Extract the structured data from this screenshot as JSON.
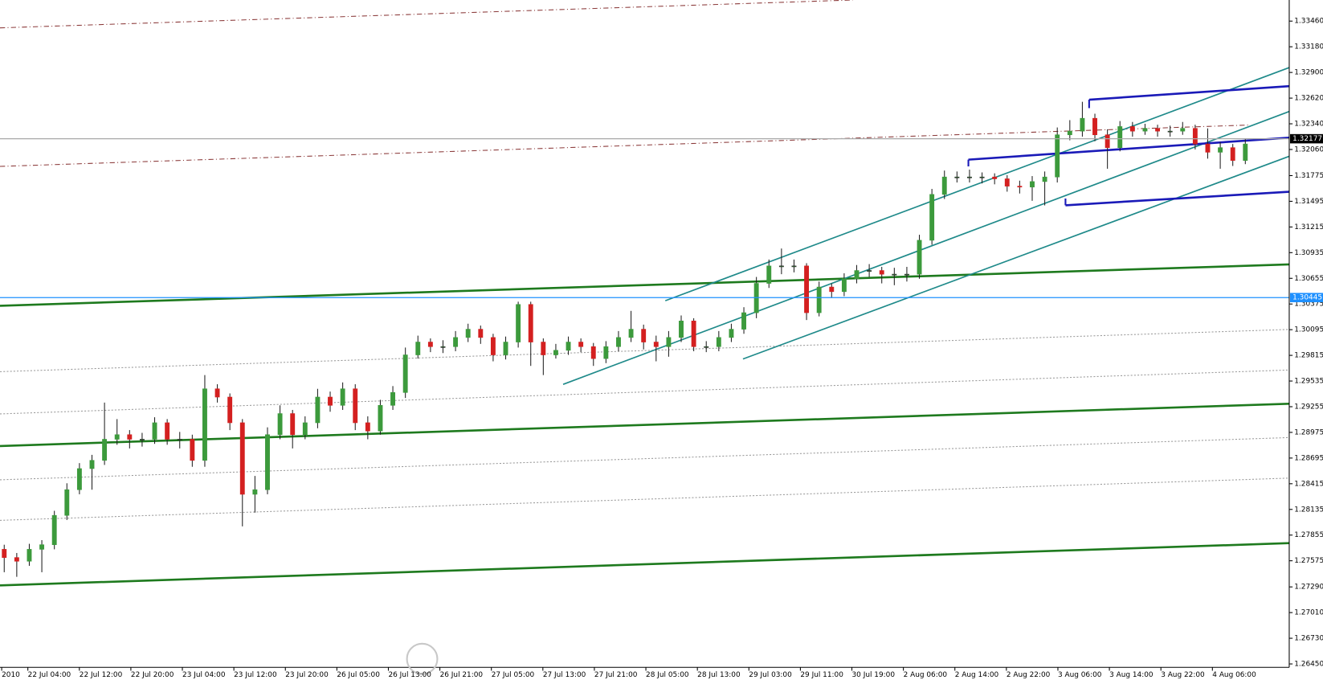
{
  "chart_data": {
    "type": "candlestick",
    "open": [
      1.277,
      1.2761,
      1.2757,
      1.277,
      1.2775,
      1.2807,
      1.2835,
      1.2858,
      1.2867,
      1.289,
      1.2895,
      1.289,
      1.289,
      1.2908,
      1.289,
      1.289,
      1.2867,
      1.2945,
      1.2936,
      1.2908,
      1.283,
      1.2835,
      1.2895,
      1.2918,
      1.2895,
      1.2908,
      1.2936,
      1.2927,
      1.2945,
      1.2908,
      1.2899,
      1.2927,
      1.2941,
      1.2982,
      1.2996,
      1.2991,
      1.2991,
      1.3001,
      1.301,
      1.3001,
      1.2982,
      1.2996,
      1.3037,
      1.2996,
      1.2982,
      1.2987,
      1.2996,
      1.2991,
      1.2978,
      1.2991,
      1.3001,
      1.301,
      1.2996,
      1.2991,
      1.3001,
      1.3019,
      1.2991,
      1.2991,
      1.3001,
      1.301,
      1.3028,
      1.306,
      1.3079,
      1.3079,
      1.3079,
      1.3028,
      1.3056,
      1.3051,
      1.3065,
      1.3074,
      1.3074,
      1.307,
      1.307,
      1.307,
      1.3107,
      1.3157,
      1.3176,
      1.3176,
      1.3176,
      1.3176,
      1.3174,
      1.3166,
      1.3165,
      1.3171,
      1.3176,
      1.3222,
      1.3226,
      1.324,
      1.3222,
      1.3208,
      1.3231,
      1.3226,
      1.3229,
      1.3226,
      1.3226,
      1.3229,
      1.3212,
      1.3203,
      1.3208,
      1.3194
    ],
    "high": [
      1.2775,
      1.2766,
      1.2776,
      1.278,
      1.2812,
      1.2842,
      1.2864,
      1.2873,
      1.293,
      1.2912,
      1.29,
      1.2897,
      1.2914,
      1.2912,
      1.2898,
      1.2895,
      1.296,
      1.295,
      1.294,
      1.2912,
      1.285,
      1.2903,
      1.2927,
      1.2922,
      1.2915,
      1.2945,
      1.2942,
      1.2952,
      1.295,
      1.2915,
      1.2933,
      1.2948,
      1.299,
      1.3003,
      1.3,
      1.2998,
      1.3008,
      1.3016,
      1.3014,
      1.3005,
      1.3002,
      1.304,
      1.304,
      1.3,
      1.2994,
      1.3002,
      1.3,
      1.2995,
      1.2997,
      1.3008,
      1.303,
      1.3015,
      1.3003,
      1.3008,
      1.3025,
      1.3022,
      1.2997,
      1.3008,
      1.3016,
      1.3034,
      1.3067,
      1.3086,
      1.3098,
      1.3086,
      1.3082,
      1.3062,
      1.306,
      1.3071,
      1.308,
      1.3081,
      1.3078,
      1.3077,
      1.3078,
      1.3113,
      1.3163,
      1.3183,
      1.3182,
      1.3184,
      1.3181,
      1.318,
      1.3178,
      1.3172,
      1.3177,
      1.3182,
      1.323,
      1.3238,
      1.3258,
      1.3245,
      1.3228,
      1.3237,
      1.3236,
      1.3234,
      1.3233,
      1.3232,
      1.3236,
      1.3233,
      1.3229,
      1.3214,
      1.3212,
      1.3218
    ],
    "low": [
      1.2745,
      1.274,
      1.2752,
      1.2745,
      1.277,
      1.2802,
      1.283,
      1.2835,
      1.2862,
      1.2884,
      1.288,
      1.2882,
      1.2885,
      1.2884,
      1.288,
      1.286,
      1.286,
      1.293,
      1.29,
      1.2795,
      1.281,
      1.283,
      1.289,
      1.288,
      1.289,
      1.2902,
      1.292,
      1.2922,
      1.29,
      1.289,
      1.2895,
      1.2922,
      1.2935,
      1.2978,
      1.2985,
      1.2984,
      1.2986,
      1.2996,
      1.2994,
      1.2975,
      1.2977,
      1.299,
      1.297,
      1.296,
      1.2978,
      1.2982,
      1.2985,
      1.297,
      1.2973,
      1.2986,
      1.2996,
      1.2988,
      1.2975,
      1.298,
      1.2996,
      1.2986,
      1.2985,
      1.2986,
      1.2996,
      1.3005,
      1.3022,
      1.3055,
      1.307,
      1.3072,
      1.302,
      1.3024,
      1.3044,
      1.3046,
      1.306,
      1.3067,
      1.306,
      1.3058,
      1.3062,
      1.3065,
      1.3102,
      1.3152,
      1.317,
      1.317,
      1.3169,
      1.3168,
      1.316,
      1.3158,
      1.315,
      1.3145,
      1.317,
      1.3216,
      1.322,
      1.3215,
      1.3185,
      1.3204,
      1.322,
      1.3222,
      1.322,
      1.322,
      1.3222,
      1.3206,
      1.3196,
      1.3185,
      1.3188,
      1.319
    ],
    "close": [
      1.2761,
      1.2757,
      1.277,
      1.2775,
      1.2807,
      1.2835,
      1.2858,
      1.2867,
      1.289,
      1.2895,
      1.289,
      1.289,
      1.2908,
      1.289,
      1.289,
      1.2867,
      1.2945,
      1.2936,
      1.2908,
      1.283,
      1.2835,
      1.2895,
      1.2918,
      1.2895,
      1.2908,
      1.2936,
      1.2927,
      1.2945,
      1.2908,
      1.2899,
      1.2927,
      1.2941,
      1.2982,
      1.2996,
      1.2991,
      1.2991,
      1.3001,
      1.301,
      1.3001,
      1.2982,
      1.2996,
      1.3037,
      1.2996,
      1.2982,
      1.2987,
      1.2996,
      1.2991,
      1.2978,
      1.2991,
      1.3001,
      1.301,
      1.2996,
      1.2991,
      1.3001,
      1.3019,
      1.2991,
      1.2991,
      1.3001,
      1.301,
      1.3028,
      1.306,
      1.3079,
      1.3079,
      1.3079,
      1.3028,
      1.3056,
      1.3051,
      1.3065,
      1.3074,
      1.3074,
      1.307,
      1.307,
      1.307,
      1.3107,
      1.3157,
      1.3176,
      1.3176,
      1.3176,
      1.3176,
      1.3174,
      1.3166,
      1.3165,
      1.3171,
      1.3176,
      1.3222,
      1.3226,
      1.324,
      1.3222,
      1.3208,
      1.3231,
      1.3226,
      1.3229,
      1.3226,
      1.3226,
      1.3229,
      1.3212,
      1.3203,
      1.3208,
      1.3194,
      1.3212
    ],
    "up_color": "#3c9a3c",
    "down_color": "#d42020",
    "wick_color": "#202020",
    "ylim": [
      1.26413,
      1.3369
    ],
    "yticks": [
      {
        "value": 1.3346,
        "label": "1.33460"
      },
      {
        "value": 1.3318,
        "label": "1.33180"
      },
      {
        "value": 1.329,
        "label": "1.32900"
      },
      {
        "value": 1.3262,
        "label": "1.32620"
      },
      {
        "value": 1.3234,
        "label": "1.32340"
      },
      {
        "value": 1.3206,
        "label": "1.32060"
      },
      1.31775,
      1.31495,
      1.31215,
      1.30935,
      1.30655,
      1.30375,
      1.30095,
      1.29815,
      1.29535,
      1.29255,
      1.28975,
      1.28695,
      1.28415,
      1.28135,
      1.27855,
      1.27575,
      {
        "value": 1.2729,
        "label": "1.27290"
      },
      {
        "value": 1.2701,
        "label": "1.27010"
      },
      {
        "value": 1.2673,
        "label": "1.26730"
      },
      {
        "value": 1.2645,
        "label": "1.26450"
      }
    ],
    "x_labels": [
      "2010",
      "22 Jul 04:00",
      "22 Jul 12:00",
      "22 Jul 20:00",
      "23 Jul 04:00",
      "23 Jul 12:00",
      "23 Jul 20:00",
      "26 Jul 05:00",
      "26 Jul 13:00",
      "26 Jul 21:00",
      "27 Jul 05:00",
      "27 Jul 13:00",
      "27 Jul 21:00",
      "28 Jul 05:00",
      "28 Jul 13:00",
      "29 Jul 03:00",
      "29 Jul 11:00",
      "30 Jul 19:00",
      "2 Aug 06:00",
      "2 Aug 14:00",
      "2 Aug 22:00",
      "3 Aug 06:00",
      "3 Aug 14:00",
      "3 Aug 22:00",
      "4 Aug 06:00"
    ],
    "price_lines": [
      {
        "value": 1.32177,
        "color": "#a8a8a8",
        "label_bg": "#000000"
      },
      {
        "value": 1.30445,
        "color": "#1e90ff",
        "label_bg": "#1e90ff"
      }
    ]
  }
}
